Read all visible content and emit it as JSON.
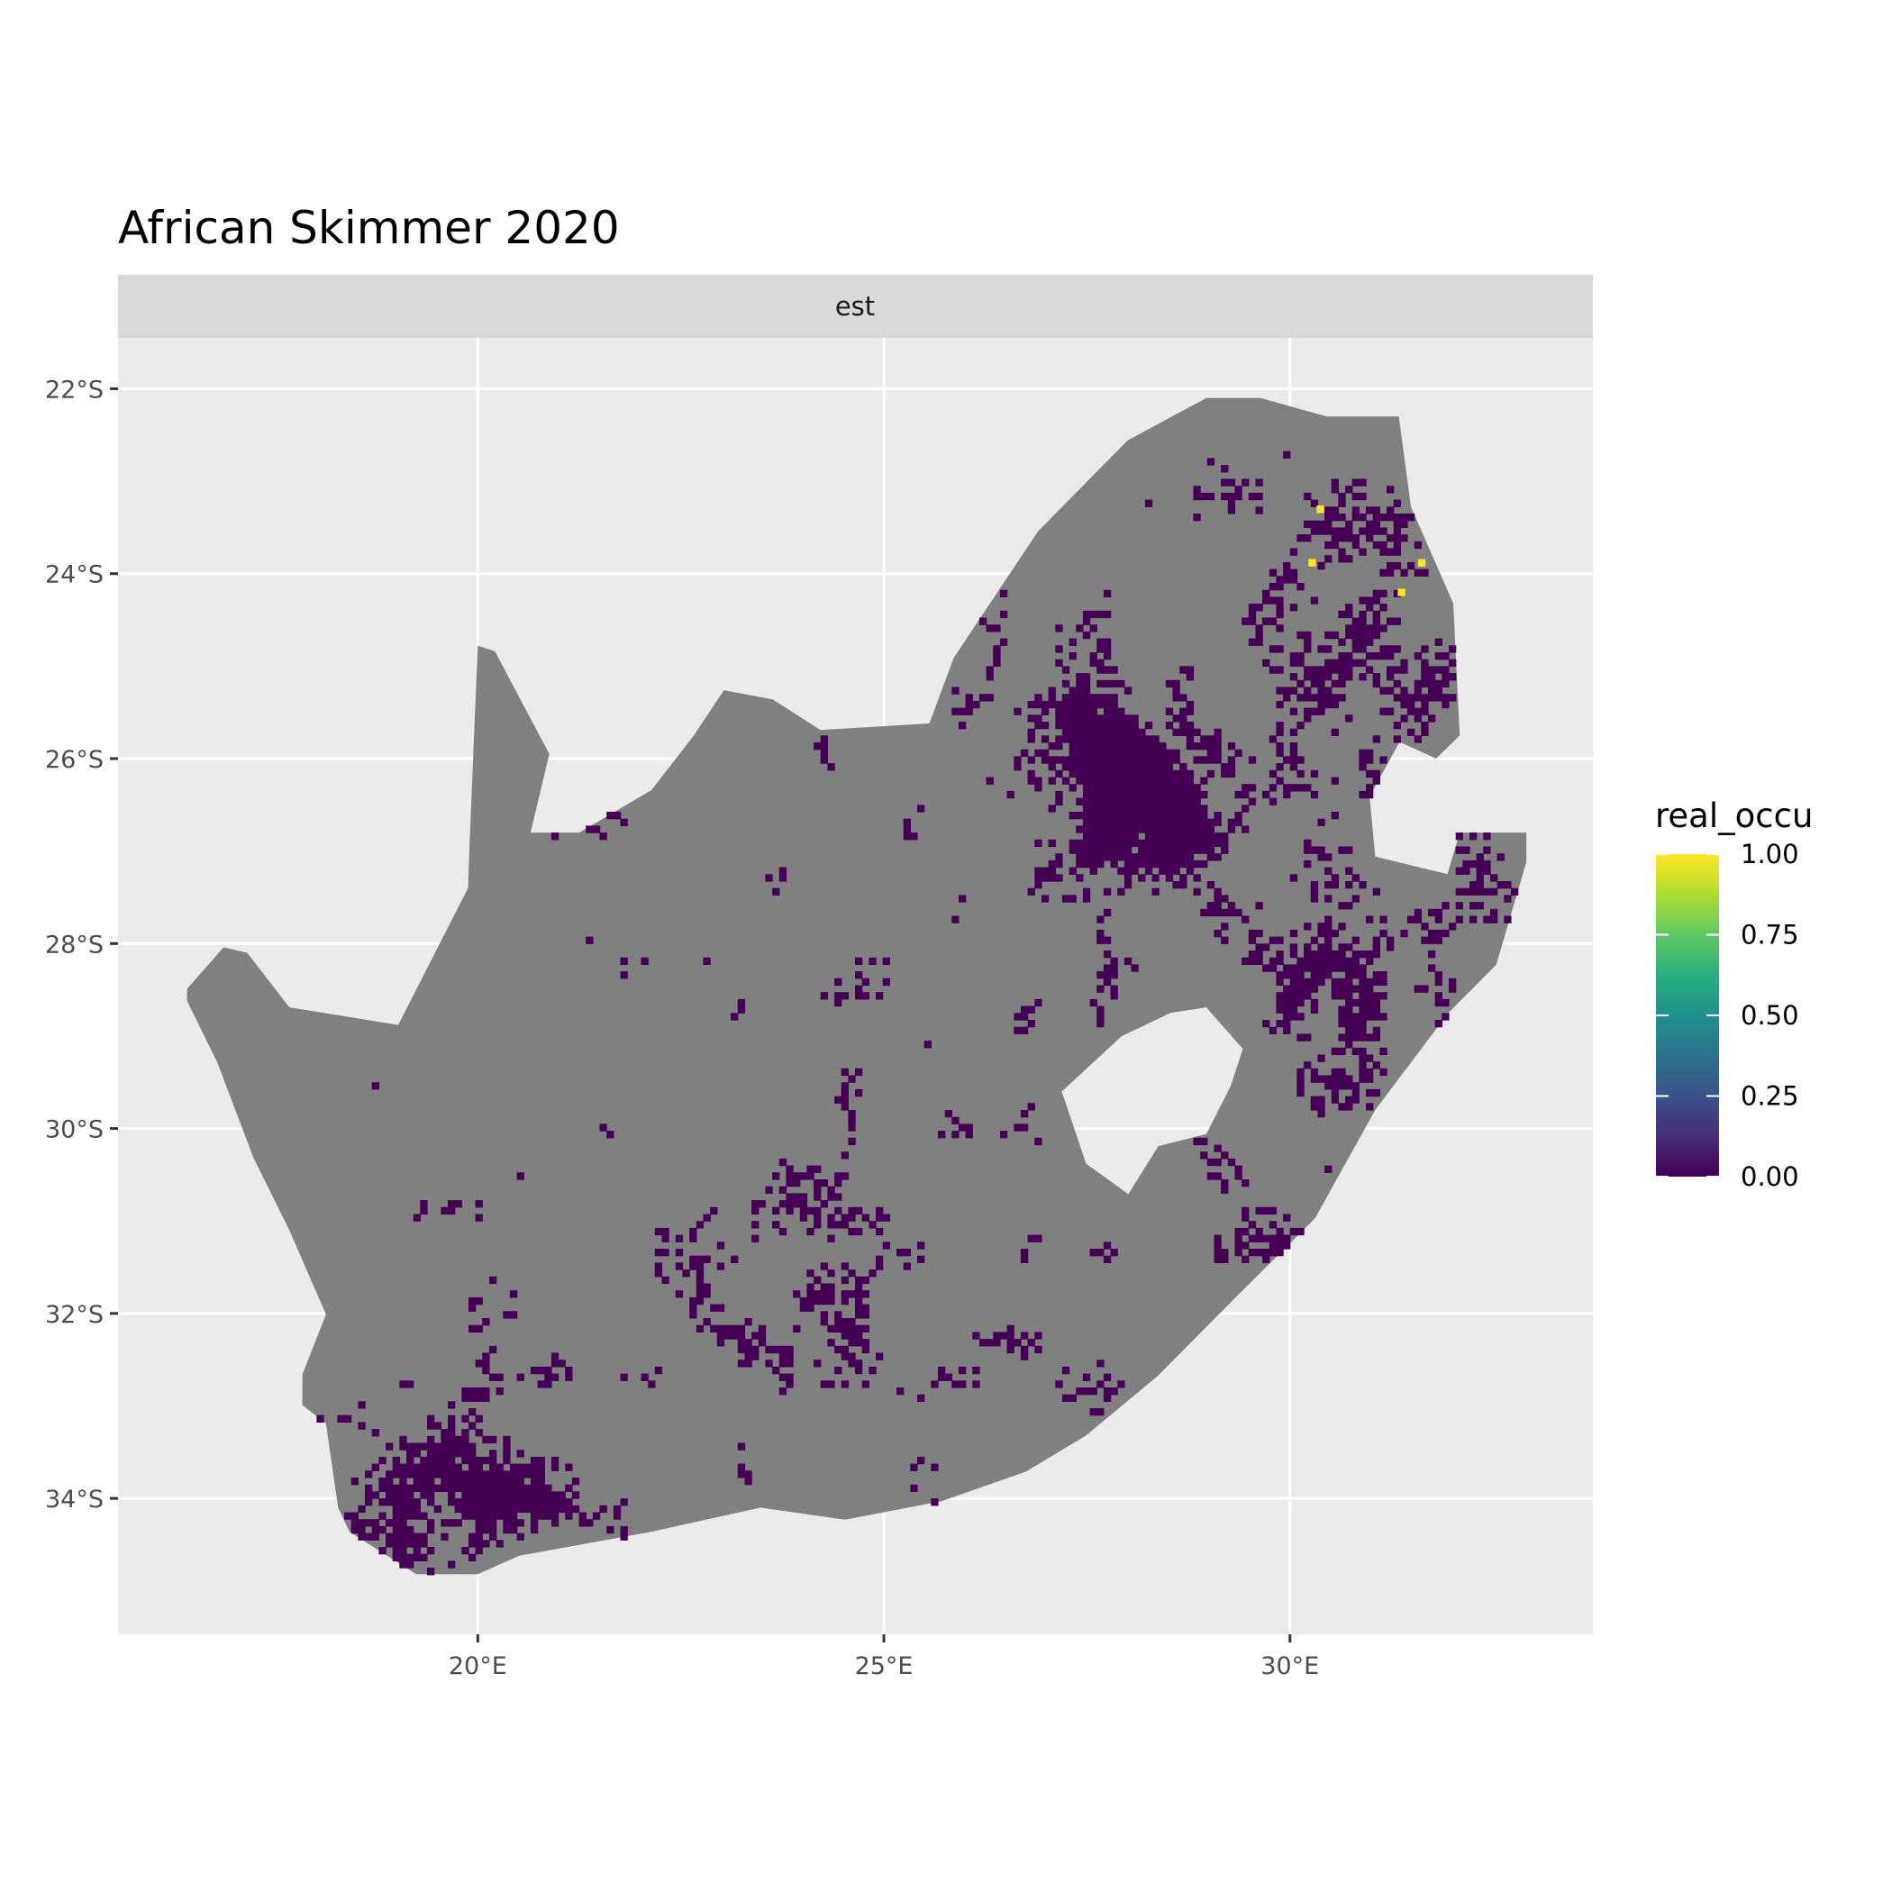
{
  "chart_data": {
    "type": "heatmap",
    "title": "African Skimmer 2020",
    "facet": "est",
    "xlabel": "",
    "ylabel": "",
    "x_ticks": [
      {
        "value": 20,
        "label": "20°E"
      },
      {
        "value": 25,
        "label": "25°E"
      },
      {
        "value": 30,
        "label": "30°E"
      }
    ],
    "y_ticks": [
      {
        "value": -22,
        "label": "22°S"
      },
      {
        "value": -24,
        "label": "24°S"
      },
      {
        "value": -26,
        "label": "26°S"
      },
      {
        "value": -28,
        "label": "28°S"
      },
      {
        "value": -30,
        "label": "30°S"
      },
      {
        "value": -32,
        "label": "32°S"
      },
      {
        "value": -34,
        "label": "34°S"
      }
    ],
    "xlim": [
      15.57,
      33.73
    ],
    "ylim": [
      -35.47,
      -21.45
    ],
    "grid": true,
    "legend": {
      "title": "real_occu",
      "position": "right",
      "scale": "viridis",
      "range": [
        0,
        1
      ],
      "ticks": [
        "0.00",
        "0.25",
        "0.50",
        "0.75",
        "1.00"
      ]
    },
    "na_color": "#808080",
    "low_color": "#440154",
    "high_color": "#FDE725",
    "high_cells": [
      {
        "lon": 30.37,
        "lat": -23.3,
        "value": 1.0
      },
      {
        "lon": 30.27,
        "lat": -23.88,
        "value": 1.0
      },
      {
        "lon": 31.62,
        "lat": -23.88,
        "value": 1.0
      },
      {
        "lon": 31.37,
        "lat": -24.2,
        "value": 1.0
      }
    ],
    "study_area": "South Africa (excluding Lesotho)"
  }
}
